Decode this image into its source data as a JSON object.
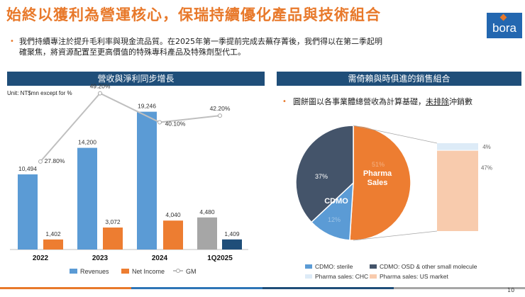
{
  "slide": {
    "title": "始終以獲利為營運核心，保瑞持續優化產品與技術組合",
    "logo_text": "bora",
    "bullet_symbol": "•",
    "intro_line1": "我們持續專注於提升毛利率與現金流品質。在2025年第一季提前完成去蕪存菁後，我們得以在第二季起明",
    "intro_line2": "確聚焦，將資源配置至更高價值的特殊專科產品及特殊劑型代工。",
    "left_header": "營收與淨利同步增長",
    "right_header": "需倚賴與時俱進的銷售組合",
    "unit_note": "Unit: NT$mn except for %",
    "pie_note_before": "圓餅圖以各事業體總營收為計算基礎，",
    "pie_note_underlined": "未排除",
    "pie_note_after": "沖銷數",
    "page_number": "10"
  },
  "colors": {
    "title": "#E8792B",
    "header_bg": "#1F4E79",
    "revenue": "#5B9BD5",
    "net_income": "#ED7D31",
    "gm_line": "#BFBFBF",
    "revenue_1q": "#A6A6A6",
    "net_income_1q": "#1F4E79",
    "sterile": "#5B9BD5",
    "osd": "#44546A",
    "chc": "#DDEBF7",
    "us_market": "#F8CBAD",
    "pharma_total": "#ED7D31"
  },
  "chart_data": [
    {
      "type": "bar",
      "categories": [
        "2022",
        "2023",
        "2024",
        "1Q2025"
      ],
      "series": [
        {
          "name": "Revenues",
          "values": [
            10494,
            14200,
            19246,
            4480
          ],
          "labels": [
            "10,494",
            "14,200",
            "19,246",
            "4,480"
          ]
        },
        {
          "name": "Net Income",
          "values": [
            1402,
            3072,
            4040,
            1409
          ],
          "labels": [
            "1,402",
            "3,072",
            "4,040",
            "1,409"
          ]
        },
        {
          "name": "GM",
          "values": [
            27.8,
            49.2,
            40.1,
            42.2
          ],
          "labels": [
            "27.80%",
            "49.20%",
            "40.10%",
            "42.20%"
          ]
        }
      ],
      "legend": [
        "Revenues",
        "Net Income",
        "GM"
      ],
      "legend_position": "bottom"
    },
    {
      "type": "pie",
      "slices": [
        {
          "name": "Pharma Sales",
          "value": 51,
          "label": "51%"
        },
        {
          "name": "CDMO: sterile",
          "value": 12,
          "label": "12%"
        },
        {
          "name": "CDMO: OSD & other small molecule",
          "value": 37,
          "label": "37%"
        }
      ],
      "inner_labels": {
        "pharma": "Pharma\nSales",
        "cdmo": "CDMO"
      },
      "breakdown": {
        "of": "Pharma Sales",
        "parts": [
          {
            "name": "Pharma sales: CHC",
            "value": 4,
            "label": "4%"
          },
          {
            "name": "Pharma sales: US market",
            "value": 47,
            "label": "47%"
          }
        ]
      },
      "legend": [
        "CDMO: sterile",
        "CDMO: OSD & other small molecule",
        "Pharma sales: CHC",
        "Pharma sales: US market"
      ],
      "legend_position": "bottom"
    }
  ]
}
